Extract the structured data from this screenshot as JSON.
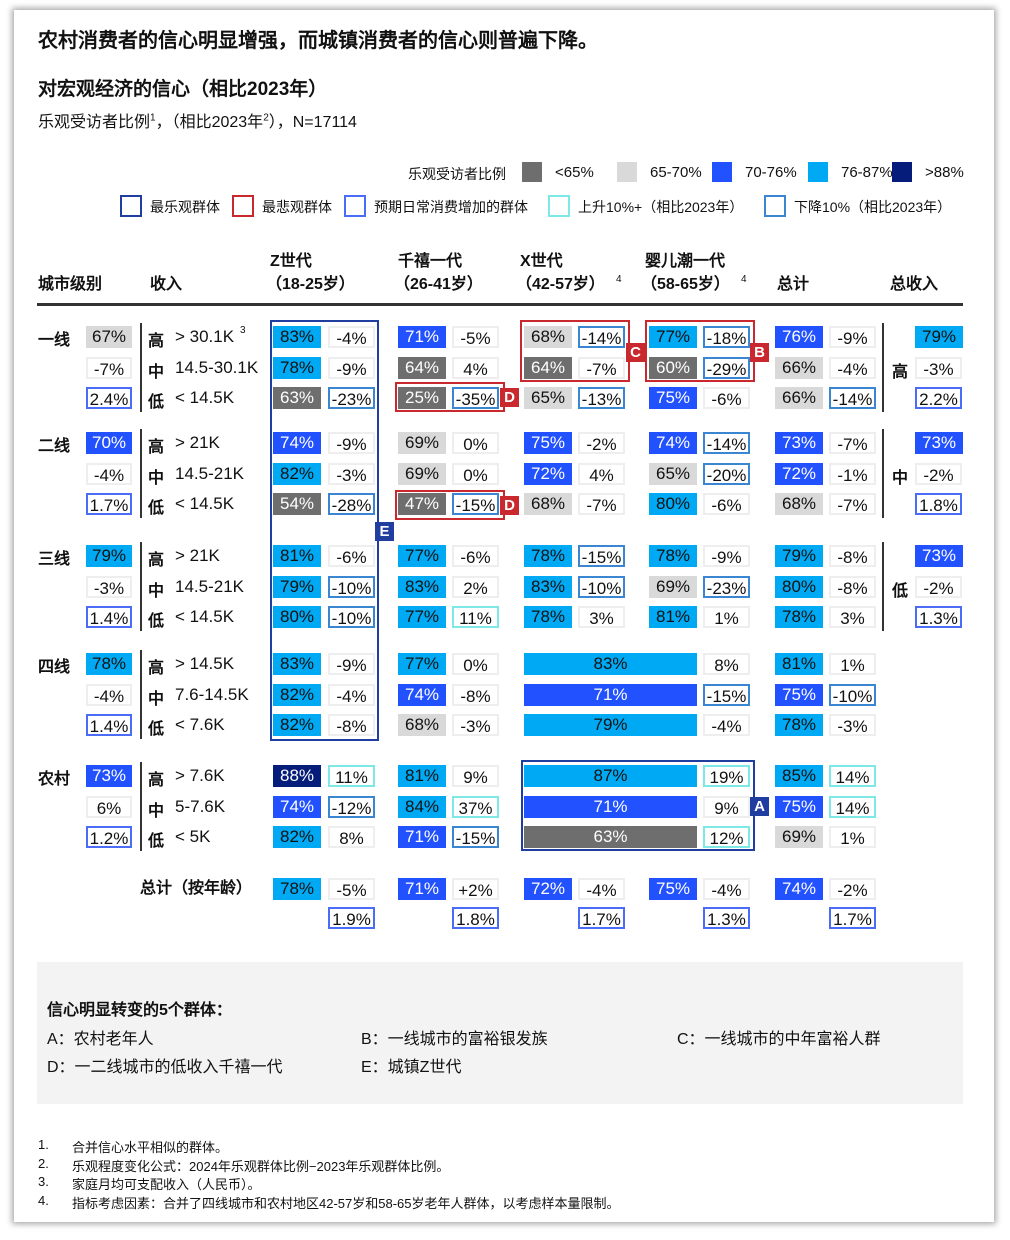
{
  "header": {
    "title": "农村消费者的信心明显增强，而城镇消费者的信心则普遍下降。",
    "subtitle": "对宏观经济的信心（相比2023年）",
    "description_a": "乐观受访者比例",
    "description_sup1": "1",
    "description_b": "，（相比2023年",
    "description_sup2": "2",
    "description_c": "），N=17114"
  },
  "legend": {
    "fill_title": "乐观受访者比例",
    "fills": [
      {
        "label": "<65%",
        "color": "#6e6e6e"
      },
      {
        "label": "65-70%",
        "color": "#d9d9d9"
      },
      {
        "label": "70-76%",
        "color": "#2251ff"
      },
      {
        "label": "76-87%",
        "color": "#00a9f4"
      },
      {
        "label": ">88%",
        "color": "#051c7a"
      }
    ],
    "outlines": [
      {
        "label": "最乐观群体",
        "color": "#1f3ea0"
      },
      {
        "label": "最悲观群体",
        "color": "#c8282e"
      },
      {
        "label": "预期日常消费增加的群体",
        "color": "#4a6cf7"
      },
      {
        "label": "上升10%+（相比2023年）",
        "color": "#7ee8e6"
      },
      {
        "label": "下降10%（相比2023年）",
        "color": "#3a86d1"
      }
    ]
  },
  "chart_data": {
    "type": "table",
    "columns": {
      "city": "城市级别",
      "income": "收入",
      "genz": [
        "Z世代",
        "（18-25岁）"
      ],
      "mill": [
        "千禧一代",
        "（26-41岁）"
      ],
      "genx": [
        "X世代",
        "（42-57岁）",
        "4"
      ],
      "boom": [
        "婴儿潮一代",
        "（58-65岁）",
        "4"
      ],
      "total": "总计",
      "income_total": "总收入"
    },
    "tiers": [
      {
        "name": "一线",
        "total": [
          "67%",
          "g2"
        ],
        "change": "-7%",
        "spend": "2.4%",
        "rows": [
          {
            "level": "高",
            "range": "> 30.1K",
            "sup": "3",
            "genz": [
              "83%",
              "b2",
              "-4%",
              "n"
            ],
            "mill": [
              "71%",
              "b1",
              "-5%",
              "n"
            ],
            "genx": [
              "68%",
              "g2",
              "-14%",
              "d"
            ],
            "boom": [
              "77%",
              "b2",
              "-18%",
              "d"
            ],
            "total": [
              "76%",
              "b1",
              "-9%",
              "n"
            ]
          },
          {
            "level": "中",
            "range": "14.5-30.1K",
            "genz": [
              "78%",
              "b2",
              "-9%",
              "n"
            ],
            "mill": [
              "64%",
              "g1",
              "4%",
              "n"
            ],
            "genx": [
              "64%",
              "g1",
              "-7%",
              "n"
            ],
            "boom": [
              "60%",
              "g1",
              "-29%",
              "d"
            ],
            "total": [
              "66%",
              "g2",
              "-4%",
              "n"
            ]
          },
          {
            "level": "低",
            "range": "< 14.5K",
            "genz": [
              "63%",
              "g1",
              "-23%",
              "d"
            ],
            "mill": [
              "25%",
              "g1",
              "-35%",
              "d"
            ],
            "genx": [
              "65%",
              "g2",
              "-13%",
              "d"
            ],
            "boom": [
              "75%",
              "b1",
              "-6%",
              "n"
            ],
            "total": [
              "66%",
              "g2",
              "-14%",
              "d"
            ]
          }
        ]
      },
      {
        "name": "二线",
        "total": [
          "70%",
          "b1"
        ],
        "change": "-4%",
        "spend": "1.7%",
        "rows": [
          {
            "level": "高",
            "range": "> 21K",
            "genz": [
              "74%",
              "b1",
              "-9%",
              "n"
            ],
            "mill": [
              "69%",
              "g2",
              "0%",
              "n"
            ],
            "genx": [
              "75%",
              "b1",
              "-2%",
              "n"
            ],
            "boom": [
              "74%",
              "b1",
              "-14%",
              "d"
            ],
            "total": [
              "73%",
              "b1",
              "-7%",
              "n"
            ]
          },
          {
            "level": "中",
            "range": "14.5-21K",
            "genz": [
              "82%",
              "b2",
              "-3%",
              "n"
            ],
            "mill": [
              "69%",
              "g2",
              "0%",
              "n"
            ],
            "genx": [
              "72%",
              "b1",
              "4%",
              "n"
            ],
            "boom": [
              "65%",
              "g2",
              "-20%",
              "d"
            ],
            "total": [
              "72%",
              "b1",
              "-1%",
              "n"
            ]
          },
          {
            "level": "低",
            "range": "< 14.5K",
            "genz": [
              "54%",
              "g1",
              "-28%",
              "d"
            ],
            "mill": [
              "47%",
              "g1",
              "-15%",
              "d"
            ],
            "genx": [
              "68%",
              "g2",
              "-7%",
              "n"
            ],
            "boom": [
              "80%",
              "b2",
              "-6%",
              "n"
            ],
            "total": [
              "68%",
              "g2",
              "-7%",
              "n"
            ]
          }
        ]
      },
      {
        "name": "三线",
        "total": [
          "79%",
          "b2"
        ],
        "change": "-3%",
        "spend": "1.4%",
        "rows": [
          {
            "level": "高",
            "range": "> 21K",
            "genz": [
              "81%",
              "b2",
              "-6%",
              "n"
            ],
            "mill": [
              "77%",
              "b2",
              "-6%",
              "n"
            ],
            "genx": [
              "78%",
              "b2",
              "-15%",
              "d"
            ],
            "boom": [
              "78%",
              "b2",
              "-9%",
              "n"
            ],
            "total": [
              "79%",
              "b2",
              "-8%",
              "n"
            ]
          },
          {
            "level": "中",
            "range": "14.5-21K",
            "genz": [
              "79%",
              "b2",
              "-10%",
              "d"
            ],
            "mill": [
              "83%",
              "b2",
              "2%",
              "n"
            ],
            "genx": [
              "83%",
              "b2",
              "-10%",
              "d"
            ],
            "boom": [
              "69%",
              "g2",
              "-23%",
              "d"
            ],
            "total": [
              "80%",
              "b2",
              "-8%",
              "n"
            ]
          },
          {
            "level": "低",
            "range": "< 14.5K",
            "genz": [
              "80%",
              "b2",
              "-10%",
              "d"
            ],
            "mill": [
              "77%",
              "b2",
              "11%",
              "u"
            ],
            "genx": [
              "78%",
              "b2",
              "3%",
              "n"
            ],
            "boom": [
              "81%",
              "b2",
              "1%",
              "n"
            ],
            "total": [
              "78%",
              "b2",
              "3%",
              "n"
            ]
          }
        ]
      },
      {
        "name": "四线",
        "total": [
          "78%",
          "b2"
        ],
        "change": "-4%",
        "spend": "1.4%",
        "rows": [
          {
            "level": "高",
            "range": "> 14.5K",
            "genz": [
              "83%",
              "b2",
              "-9%",
              "n"
            ],
            "mill": [
              "77%",
              "b2",
              "0%",
              "n"
            ],
            "genx_boom": [
              "83%",
              "b2",
              "8%",
              "n"
            ],
            "total": [
              "81%",
              "b2",
              "1%",
              "n"
            ]
          },
          {
            "level": "中",
            "range": "7.6-14.5K",
            "genz": [
              "82%",
              "b2",
              "-4%",
              "n"
            ],
            "mill": [
              "74%",
              "b1",
              "-8%",
              "n"
            ],
            "genx_boom": [
              "71%",
              "b1",
              "-15%",
              "d"
            ],
            "total": [
              "75%",
              "b1",
              "-10%",
              "d"
            ]
          },
          {
            "level": "低",
            "range": "< 7.6K",
            "genz": [
              "82%",
              "b2",
              "-8%",
              "n"
            ],
            "mill": [
              "68%",
              "g2",
              "-3%",
              "n"
            ],
            "genx_boom": [
              "79%",
              "b2",
              "-4%",
              "n"
            ],
            "total": [
              "78%",
              "b2",
              "-3%",
              "n"
            ]
          }
        ]
      },
      {
        "name": "农村",
        "total": [
          "73%",
          "b1"
        ],
        "change": "6%",
        "spend": "1.2%",
        "rows": [
          {
            "level": "高",
            "range": "> 7.6K",
            "genz": [
              "88%",
              "b3",
              "11%",
              "u"
            ],
            "mill": [
              "81%",
              "b2",
              "9%",
              "n"
            ],
            "genx_boom": [
              "87%",
              "b2",
              "19%",
              "u"
            ],
            "total": [
              "85%",
              "b2",
              "14%",
              "u"
            ]
          },
          {
            "level": "中",
            "range": "5-7.6K",
            "genz": [
              "74%",
              "b1",
              "-12%",
              "d"
            ],
            "mill": [
              "84%",
              "b2",
              "37%",
              "u"
            ],
            "genx_boom": [
              "71%",
              "b1",
              "9%",
              "n"
            ],
            "total": [
              "75%",
              "b1",
              "14%",
              "u"
            ]
          },
          {
            "level": "低",
            "range": "< 5K",
            "genz": [
              "82%",
              "b2",
              "8%",
              "n"
            ],
            "mill": [
              "71%",
              "b1",
              "-15%",
              "d"
            ],
            "genx_boom": [
              "63%",
              "g1",
              "12%",
              "u"
            ],
            "total": [
              "69%",
              "g2",
              "1%",
              "n"
            ]
          }
        ]
      }
    ],
    "income_totals": [
      {
        "level": "高",
        "value": [
          "79%",
          "b2"
        ],
        "change": "-3%",
        "spend": "2.2%"
      },
      {
        "level": "中",
        "value": [
          "73%",
          "b1"
        ],
        "change": "-2%",
        "spend": "1.8%"
      },
      {
        "level": "低",
        "value": [
          "73%",
          "b1"
        ],
        "change": "-2%",
        "spend": "1.3%"
      }
    ],
    "age_totals": {
      "label": "总计（按年龄）",
      "genz": [
        "78%",
        "b2",
        "-5%",
        "1.9%"
      ],
      "mill": [
        "71%",
        "b1",
        "+2%",
        "1.8%"
      ],
      "genx": [
        "72%",
        "b1",
        "-4%",
        "1.7%"
      ],
      "boom": [
        "75%",
        "b1",
        "-4%",
        "1.3%"
      ],
      "total": [
        "74%",
        "b1",
        "-2%",
        "1.7%"
      ]
    },
    "highlights": [
      {
        "tag": "E",
        "color": "#1f3ea0"
      },
      {
        "tag": "C",
        "color": "#c8282e"
      },
      {
        "tag": "B",
        "color": "#c8282e"
      },
      {
        "tag": "D",
        "color": "#c8282e"
      },
      {
        "tag": "A",
        "color": "#1f3ea0"
      }
    ]
  },
  "groups": {
    "title": "信心明显转变的5个群体：",
    "items": [
      "A：农村老年人",
      "B：一线城市的富裕银发族",
      "C：一线城市的中年富裕人群",
      "D：一二线城市的低收入千禧一代",
      "E：城镇Z世代"
    ]
  },
  "footnotes": [
    {
      "num": "1.",
      "text": "合并信心水平相似的群体。"
    },
    {
      "num": "2.",
      "text": "乐观程度变化公式：2024年乐观群体比例−2023年乐观群体比例。"
    },
    {
      "num": "3.",
      "text": "家庭月均可支配收入（人民币）。"
    },
    {
      "num": "4.",
      "text": "指标考虑因素：合并了四线城市和农村地区42-57岁和58-65岁老年人群体，以考虑样本量限制。"
    }
  ]
}
